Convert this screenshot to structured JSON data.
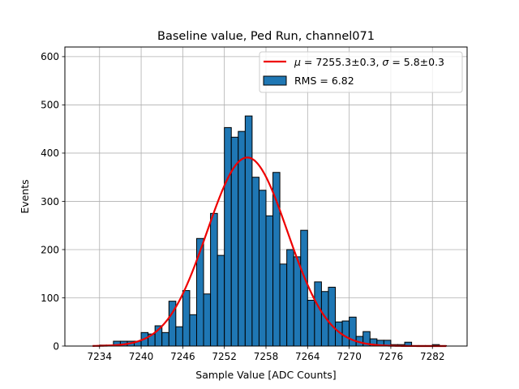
{
  "chart_data": {
    "type": "bar",
    "title": "Baseline value, Ped Run, channel071",
    "xlabel": "Sample Value [ADC Counts]",
    "ylabel": "Events",
    "xlim": [
      7229,
      7287
    ],
    "ylim": [
      0,
      620
    ],
    "grid": true,
    "legend_position": "top-right",
    "xticks": [
      7234,
      7240,
      7246,
      7252,
      7258,
      7264,
      7270,
      7276,
      7282
    ],
    "yticks": [
      0,
      100,
      200,
      300,
      400,
      500,
      600
    ],
    "bin_width": 1,
    "bins": {
      "x": [
        7234,
        7235,
        7236,
        7237,
        7238,
        7239,
        7240,
        7241,
        7242,
        7243,
        7244,
        7245,
        7246,
        7247,
        7248,
        7249,
        7250,
        7251,
        7252,
        7253,
        7254,
        7255,
        7256,
        7257,
        7258,
        7259,
        7260,
        7261,
        7262,
        7263,
        7264,
        7265,
        7266,
        7267,
        7268,
        7269,
        7270,
        7271,
        7272,
        7273,
        7274,
        7275,
        7276,
        7277,
        7278,
        7279,
        7280,
        7281,
        7282,
        7283
      ],
      "counts": [
        2,
        2,
        10,
        10,
        10,
        10,
        28,
        25,
        42,
        28,
        93,
        40,
        115,
        65,
        223,
        108,
        275,
        188,
        453,
        433,
        445,
        477,
        350,
        323,
        270,
        360,
        170,
        200,
        185,
        240,
        95,
        133,
        113,
        122,
        50,
        52,
        60,
        20,
        30,
        15,
        12,
        12,
        3,
        3,
        8,
        1,
        1,
        1,
        3,
        1
      ]
    },
    "fit": {
      "mu": 7255.3,
      "sigma": 5.8,
      "amplitude": 391,
      "x_range": [
        7233,
        7284
      ]
    },
    "series": [
      {
        "name": "$\\mu = 7255.3\\pm0.3$, $\\sigma = 5.8\\pm0.3$",
        "kind": "gaussian-fit-line",
        "color": "#ee0000"
      },
      {
        "name": "RMS = 6.82",
        "kind": "histogram",
        "color": "#1f77b4"
      }
    ],
    "legend": {
      "fit_label_parts": [
        "μ",
        " = 7255.3±0.3, ",
        "σ",
        " = 5.8±0.3"
      ],
      "hist_label": "RMS = 6.82"
    }
  }
}
